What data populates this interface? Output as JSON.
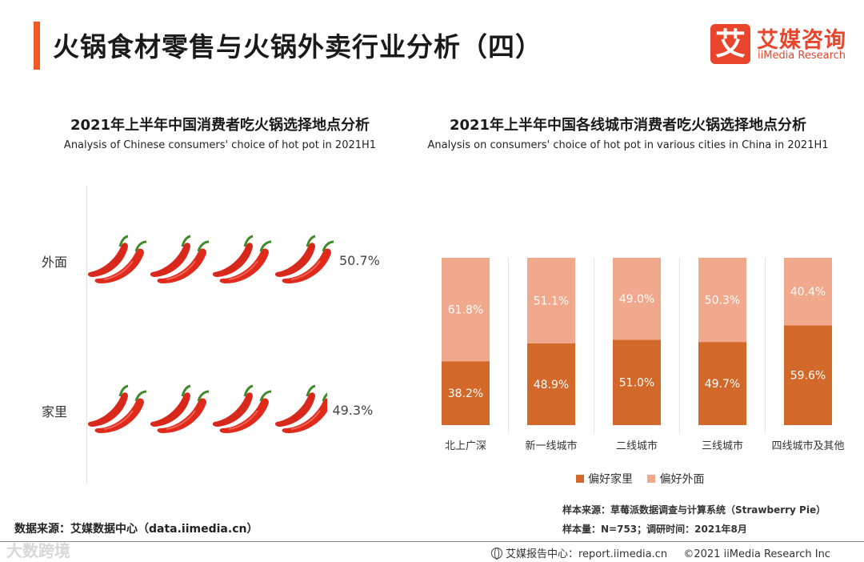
{
  "page": {
    "title": "火锅食材零售与火锅外卖行业分析（四）",
    "accent_color": "#f15a22"
  },
  "logo": {
    "mark": "艾",
    "name_cn": "艾媒咨询",
    "name_en": "iiMedia Research",
    "color": "#e8452c"
  },
  "left_chart": {
    "title": "2021年上半年中国消费者吃火锅选择地点分析",
    "subtitle": "Analysis of Chinese consumers' choice of hot pot in 2021H1"
  },
  "right_chart": {
    "title": "2021年上半年中国各线城市消费者吃火锅选择地点分析",
    "subtitle": "Analysis on consumers' choice of hot pot in various cities in China in 2021H1"
  },
  "chart_data": [
    {
      "type": "bar",
      "style": "pictograph",
      "icon": "chili-pepper-icon",
      "categories": [
        "外面",
        "家里"
      ],
      "values": [
        50.7,
        49.3
      ],
      "value_labels": [
        "50.7%",
        "49.3%"
      ],
      "unit": "%",
      "title": "2021年上半年中国消费者吃火锅选择地点分析",
      "subtitle": "Analysis of Chinese consumers' choice of hot pot in 2021H1",
      "orientation": "horizontal"
    },
    {
      "type": "bar",
      "stacked": true,
      "categories": [
        "北上广深",
        "新一线城市",
        "二线城市",
        "三线城市",
        "四线城市及其他"
      ],
      "series": [
        {
          "name": "偏好家里",
          "values": [
            38.2,
            48.9,
            51.0,
            49.7,
            59.6
          ],
          "labels": [
            "38.2%",
            "48.9%",
            "51.0%",
            "49.7%",
            "59.6%"
          ],
          "color": "#d2692a"
        },
        {
          "name": "偏好外面",
          "values": [
            61.8,
            51.1,
            49.0,
            50.3,
            40.4
          ],
          "labels": [
            "61.8%",
            "51.1%",
            "49.0%",
            "50.3%",
            "40.4%"
          ],
          "color": "#f0a98c"
        }
      ],
      "ylim": [
        0,
        100
      ],
      "title": "2021年上半年中国各线城市消费者吃火锅选择地点分析",
      "subtitle": "Analysis on consumers' choice of hot pot in various cities in China in 2021H1",
      "legend_position": "bottom"
    }
  ],
  "notes": {
    "sample_source": "样本来源：草莓派数据调查与计算系统（Strawberry Pie）",
    "sample_size": "样本量：N=753；调研时间：2021年8月"
  },
  "source": "数据来源：艾媒数据中心（data.iimedia.cn）",
  "watermark": "大数跨境",
  "footer": {
    "center": "艾媒报告中心：report.iimedia.cn",
    "copyright": "©2021  iiMedia Research  Inc"
  }
}
